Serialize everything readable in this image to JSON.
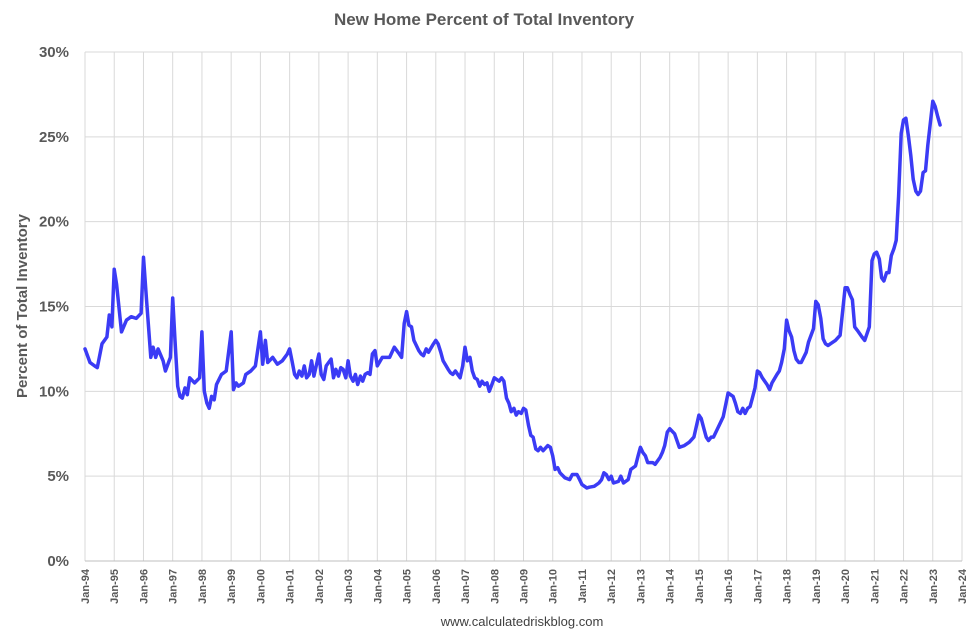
{
  "chart_data": {
    "type": "line",
    "title": "New Home Percent of Total Inventory",
    "ylabel": "Percent of Total Inventory",
    "xlabel": "",
    "source": "www.calculatedriskblog.com",
    "ylim": [
      0,
      30
    ],
    "yticks": [
      0,
      5,
      10,
      15,
      20,
      25,
      30
    ],
    "ytick_labels": [
      "0%",
      "5%",
      "10%",
      "15%",
      "20%",
      "25%",
      "30%"
    ],
    "xlim": [
      1994,
      2024
    ],
    "xtick_labels": [
      "Jan-94",
      "Jan-95",
      "Jan-96",
      "Jan-97",
      "Jan-98",
      "Jan-99",
      "Jan-00",
      "Jan-01",
      "Jan-02",
      "Jan-03",
      "Jan-04",
      "Jan-05",
      "Jan-06",
      "Jan-07",
      "Jan-08",
      "Jan-09",
      "Jan-10",
      "Jan-11",
      "Jan-12",
      "Jan-13",
      "Jan-14",
      "Jan-15",
      "Jan-16",
      "Jan-17",
      "Jan-18",
      "Jan-19",
      "Jan-20",
      "Jan-21",
      "Jan-22",
      "Jan-23",
      "Jan-24"
    ],
    "grid": true,
    "color": "#3b3bf5",
    "series": [
      {
        "points": [
          [
            1994.0,
            12.5
          ],
          [
            1994.17,
            11.7
          ],
          [
            1994.33,
            11.5
          ],
          [
            1994.42,
            11.4
          ],
          [
            1994.58,
            12.8
          ],
          [
            1994.75,
            13.2
          ],
          [
            1994.83,
            14.5
          ],
          [
            1994.92,
            13.8
          ],
          [
            1995.0,
            17.2
          ],
          [
            1995.08,
            16.3
          ],
          [
            1995.25,
            13.5
          ],
          [
            1995.42,
            14.2
          ],
          [
            1995.58,
            14.4
          ],
          [
            1995.75,
            14.3
          ],
          [
            1995.92,
            14.6
          ],
          [
            1996.0,
            17.9
          ],
          [
            1996.1,
            15.5
          ],
          [
            1996.25,
            12.0
          ],
          [
            1996.33,
            12.6
          ],
          [
            1996.42,
            12.0
          ],
          [
            1996.5,
            12.5
          ],
          [
            1996.67,
            11.8
          ],
          [
            1996.75,
            11.2
          ],
          [
            1996.92,
            12.0
          ],
          [
            1997.0,
            15.5
          ],
          [
            1997.08,
            13.0
          ],
          [
            1997.17,
            10.3
          ],
          [
            1997.25,
            9.7
          ],
          [
            1997.33,
            9.6
          ],
          [
            1997.42,
            10.2
          ],
          [
            1997.5,
            9.8
          ],
          [
            1997.58,
            10.8
          ],
          [
            1997.75,
            10.5
          ],
          [
            1997.92,
            10.8
          ],
          [
            1998.0,
            13.5
          ],
          [
            1998.08,
            10.0
          ],
          [
            1998.17,
            9.3
          ],
          [
            1998.25,
            9.0
          ],
          [
            1998.33,
            9.7
          ],
          [
            1998.42,
            9.5
          ],
          [
            1998.5,
            10.4
          ],
          [
            1998.67,
            11.0
          ],
          [
            1998.83,
            11.2
          ],
          [
            1999.0,
            13.5
          ],
          [
            1999.08,
            10.1
          ],
          [
            1999.17,
            10.5
          ],
          [
            1999.25,
            10.3
          ],
          [
            1999.42,
            10.5
          ],
          [
            1999.5,
            11.0
          ],
          [
            1999.67,
            11.2
          ],
          [
            1999.83,
            11.5
          ],
          [
            2000.0,
            13.5
          ],
          [
            2000.08,
            11.6
          ],
          [
            2000.17,
            13.0
          ],
          [
            2000.25,
            11.7
          ],
          [
            2000.42,
            12.0
          ],
          [
            2000.58,
            11.6
          ],
          [
            2000.75,
            11.8
          ],
          [
            2000.92,
            12.2
          ],
          [
            2001.0,
            12.5
          ],
          [
            2001.08,
            11.8
          ],
          [
            2001.17,
            11.0
          ],
          [
            2001.25,
            10.8
          ],
          [
            2001.33,
            11.2
          ],
          [
            2001.42,
            10.9
          ],
          [
            2001.5,
            11.5
          ],
          [
            2001.58,
            10.8
          ],
          [
            2001.67,
            11.0
          ],
          [
            2001.75,
            11.8
          ],
          [
            2001.83,
            10.9
          ],
          [
            2002.0,
            12.2
          ],
          [
            2002.08,
            11.0
          ],
          [
            2002.17,
            10.7
          ],
          [
            2002.25,
            11.5
          ],
          [
            2002.42,
            11.9
          ],
          [
            2002.5,
            10.8
          ],
          [
            2002.58,
            11.3
          ],
          [
            2002.67,
            10.9
          ],
          [
            2002.75,
            11.4
          ],
          [
            2002.83,
            11.3
          ],
          [
            2002.92,
            10.8
          ],
          [
            2003.0,
            11.8
          ],
          [
            2003.08,
            10.9
          ],
          [
            2003.17,
            10.6
          ],
          [
            2003.25,
            11.0
          ],
          [
            2003.33,
            10.4
          ],
          [
            2003.42,
            10.9
          ],
          [
            2003.5,
            10.6
          ],
          [
            2003.58,
            11.0
          ],
          [
            2003.67,
            11.1
          ],
          [
            2003.75,
            11.0
          ],
          [
            2003.83,
            12.2
          ],
          [
            2003.92,
            12.4
          ],
          [
            2004.0,
            11.5
          ],
          [
            2004.17,
            12.0
          ],
          [
            2004.42,
            12.0
          ],
          [
            2004.58,
            12.6
          ],
          [
            2004.75,
            12.2
          ],
          [
            2004.83,
            12.0
          ],
          [
            2004.92,
            14.0
          ],
          [
            2005.0,
            14.7
          ],
          [
            2005.08,
            13.9
          ],
          [
            2005.17,
            13.8
          ],
          [
            2005.25,
            13.0
          ],
          [
            2005.42,
            12.4
          ],
          [
            2005.5,
            12.2
          ],
          [
            2005.58,
            12.1
          ],
          [
            2005.67,
            12.5
          ],
          [
            2005.75,
            12.3
          ],
          [
            2005.92,
            12.8
          ],
          [
            2006.0,
            13.0
          ],
          [
            2006.08,
            12.8
          ],
          [
            2006.17,
            12.3
          ],
          [
            2006.25,
            11.8
          ],
          [
            2006.42,
            11.3
          ],
          [
            2006.5,
            11.1
          ],
          [
            2006.58,
            11.0
          ],
          [
            2006.67,
            11.2
          ],
          [
            2006.75,
            11.0
          ],
          [
            2006.83,
            10.8
          ],
          [
            2006.92,
            11.5
          ],
          [
            2007.0,
            12.6
          ],
          [
            2007.08,
            11.8
          ],
          [
            2007.17,
            12.0
          ],
          [
            2007.25,
            11.2
          ],
          [
            2007.33,
            10.8
          ],
          [
            2007.42,
            10.7
          ],
          [
            2007.5,
            10.3
          ],
          [
            2007.58,
            10.6
          ],
          [
            2007.67,
            10.4
          ],
          [
            2007.75,
            10.5
          ],
          [
            2007.83,
            10.0
          ],
          [
            2007.92,
            10.4
          ],
          [
            2008.0,
            10.8
          ],
          [
            2008.17,
            10.6
          ],
          [
            2008.25,
            10.8
          ],
          [
            2008.33,
            10.6
          ],
          [
            2008.42,
            9.6
          ],
          [
            2008.5,
            9.3
          ],
          [
            2008.58,
            8.8
          ],
          [
            2008.67,
            9.0
          ],
          [
            2008.75,
            8.6
          ],
          [
            2008.83,
            8.8
          ],
          [
            2008.92,
            8.7
          ],
          [
            2009.0,
            9.0
          ],
          [
            2009.08,
            8.9
          ],
          [
            2009.17,
            8.0
          ],
          [
            2009.25,
            7.4
          ],
          [
            2009.33,
            7.3
          ],
          [
            2009.42,
            6.6
          ],
          [
            2009.5,
            6.5
          ],
          [
            2009.58,
            6.7
          ],
          [
            2009.67,
            6.5
          ],
          [
            2009.83,
            6.8
          ],
          [
            2009.92,
            6.7
          ],
          [
            2010.0,
            6.2
          ],
          [
            2010.08,
            5.4
          ],
          [
            2010.17,
            5.5
          ],
          [
            2010.25,
            5.2
          ],
          [
            2010.42,
            4.9
          ],
          [
            2010.58,
            4.8
          ],
          [
            2010.67,
            5.1
          ],
          [
            2010.83,
            5.1
          ],
          [
            2010.92,
            4.8
          ],
          [
            2011.0,
            4.5
          ],
          [
            2011.17,
            4.3
          ],
          [
            2011.25,
            4.35
          ],
          [
            2011.42,
            4.4
          ],
          [
            2011.58,
            4.6
          ],
          [
            2011.67,
            4.8
          ],
          [
            2011.75,
            5.2
          ],
          [
            2011.83,
            5.1
          ],
          [
            2011.92,
            4.8
          ],
          [
            2012.0,
            5.0
          ],
          [
            2012.08,
            4.6
          ],
          [
            2012.25,
            4.7
          ],
          [
            2012.33,
            5.0
          ],
          [
            2012.42,
            4.6
          ],
          [
            2012.58,
            4.8
          ],
          [
            2012.67,
            5.4
          ],
          [
            2012.83,
            5.6
          ],
          [
            2012.92,
            6.2
          ],
          [
            2013.0,
            6.7
          ],
          [
            2013.08,
            6.4
          ],
          [
            2013.17,
            6.2
          ],
          [
            2013.25,
            5.8
          ],
          [
            2013.42,
            5.8
          ],
          [
            2013.5,
            5.7
          ],
          [
            2013.67,
            6.1
          ],
          [
            2013.75,
            6.4
          ],
          [
            2013.83,
            6.8
          ],
          [
            2013.92,
            7.6
          ],
          [
            2014.0,
            7.8
          ],
          [
            2014.17,
            7.5
          ],
          [
            2014.33,
            6.7
          ],
          [
            2014.5,
            6.8
          ],
          [
            2014.67,
            7.0
          ],
          [
            2014.83,
            7.3
          ],
          [
            2015.0,
            8.6
          ],
          [
            2015.08,
            8.4
          ],
          [
            2015.17,
            7.8
          ],
          [
            2015.25,
            7.3
          ],
          [
            2015.33,
            7.1
          ],
          [
            2015.42,
            7.3
          ],
          [
            2015.5,
            7.3
          ],
          [
            2015.58,
            7.6
          ],
          [
            2015.75,
            8.2
          ],
          [
            2015.83,
            8.5
          ],
          [
            2016.0,
            9.9
          ],
          [
            2016.17,
            9.7
          ],
          [
            2016.25,
            9.3
          ],
          [
            2016.33,
            8.8
          ],
          [
            2016.42,
            8.7
          ],
          [
            2016.5,
            9.0
          ],
          [
            2016.58,
            8.7
          ],
          [
            2016.67,
            9.0
          ],
          [
            2016.75,
            9.1
          ],
          [
            2016.83,
            9.6
          ],
          [
            2016.92,
            10.2
          ],
          [
            2017.0,
            11.2
          ],
          [
            2017.08,
            11.1
          ],
          [
            2017.17,
            10.8
          ],
          [
            2017.33,
            10.4
          ],
          [
            2017.42,
            10.1
          ],
          [
            2017.5,
            10.5
          ],
          [
            2017.67,
            11.0
          ],
          [
            2017.75,
            11.2
          ],
          [
            2017.83,
            11.7
          ],
          [
            2017.92,
            12.5
          ],
          [
            2018.0,
            14.2
          ],
          [
            2018.08,
            13.6
          ],
          [
            2018.17,
            13.2
          ],
          [
            2018.25,
            12.4
          ],
          [
            2018.33,
            11.9
          ],
          [
            2018.42,
            11.7
          ],
          [
            2018.5,
            11.7
          ],
          [
            2018.67,
            12.3
          ],
          [
            2018.75,
            12.9
          ],
          [
            2018.92,
            13.7
          ],
          [
            2019.0,
            15.3
          ],
          [
            2019.08,
            15.1
          ],
          [
            2019.17,
            14.3
          ],
          [
            2019.25,
            13.1
          ],
          [
            2019.33,
            12.8
          ],
          [
            2019.42,
            12.7
          ],
          [
            2019.5,
            12.8
          ],
          [
            2019.67,
            13.0
          ],
          [
            2019.83,
            13.3
          ],
          [
            2020.0,
            16.1
          ],
          [
            2020.08,
            16.1
          ],
          [
            2020.17,
            15.7
          ],
          [
            2020.25,
            15.4
          ],
          [
            2020.33,
            13.8
          ],
          [
            2020.42,
            13.6
          ],
          [
            2020.58,
            13.2
          ],
          [
            2020.67,
            13.0
          ],
          [
            2020.83,
            13.8
          ],
          [
            2020.92,
            17.7
          ],
          [
            2021.0,
            18.1
          ],
          [
            2021.08,
            18.2
          ],
          [
            2021.17,
            17.8
          ],
          [
            2021.25,
            16.7
          ],
          [
            2021.33,
            16.5
          ],
          [
            2021.42,
            17.0
          ],
          [
            2021.5,
            17.0
          ],
          [
            2021.58,
            18.0
          ],
          [
            2021.67,
            18.4
          ],
          [
            2021.75,
            18.9
          ],
          [
            2021.83,
            21.5
          ],
          [
            2021.92,
            25.2
          ],
          [
            2022.0,
            26.0
          ],
          [
            2022.08,
            26.1
          ],
          [
            2022.17,
            25.0
          ],
          [
            2022.25,
            23.9
          ],
          [
            2022.33,
            22.5
          ],
          [
            2022.42,
            21.8
          ],
          [
            2022.5,
            21.6
          ],
          [
            2022.58,
            21.8
          ],
          [
            2022.67,
            22.9
          ],
          [
            2022.75,
            23.0
          ],
          [
            2022.83,
            24.5
          ],
          [
            2023.0,
            27.1
          ],
          [
            2023.08,
            26.8
          ],
          [
            2023.17,
            26.2
          ],
          [
            2023.25,
            25.7
          ]
        ]
      }
    ]
  }
}
